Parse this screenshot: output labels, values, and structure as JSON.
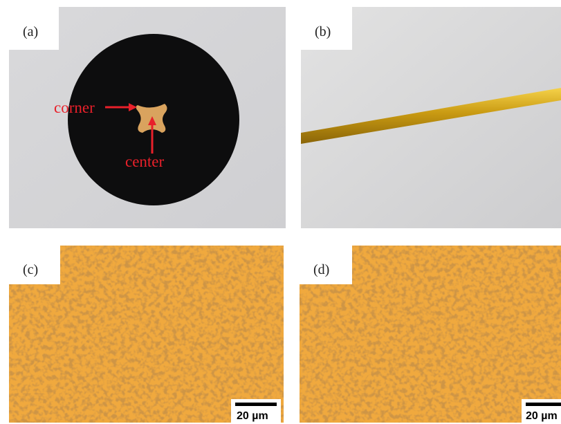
{
  "panels": [
    {
      "label": "(a)",
      "annotations": [
        "corner",
        "center"
      ]
    },
    {
      "label": "(b)"
    },
    {
      "label": "(c)",
      "scale_bar": "20 µm"
    },
    {
      "label": "(d)",
      "scale_bar": "20 µm"
    }
  ]
}
